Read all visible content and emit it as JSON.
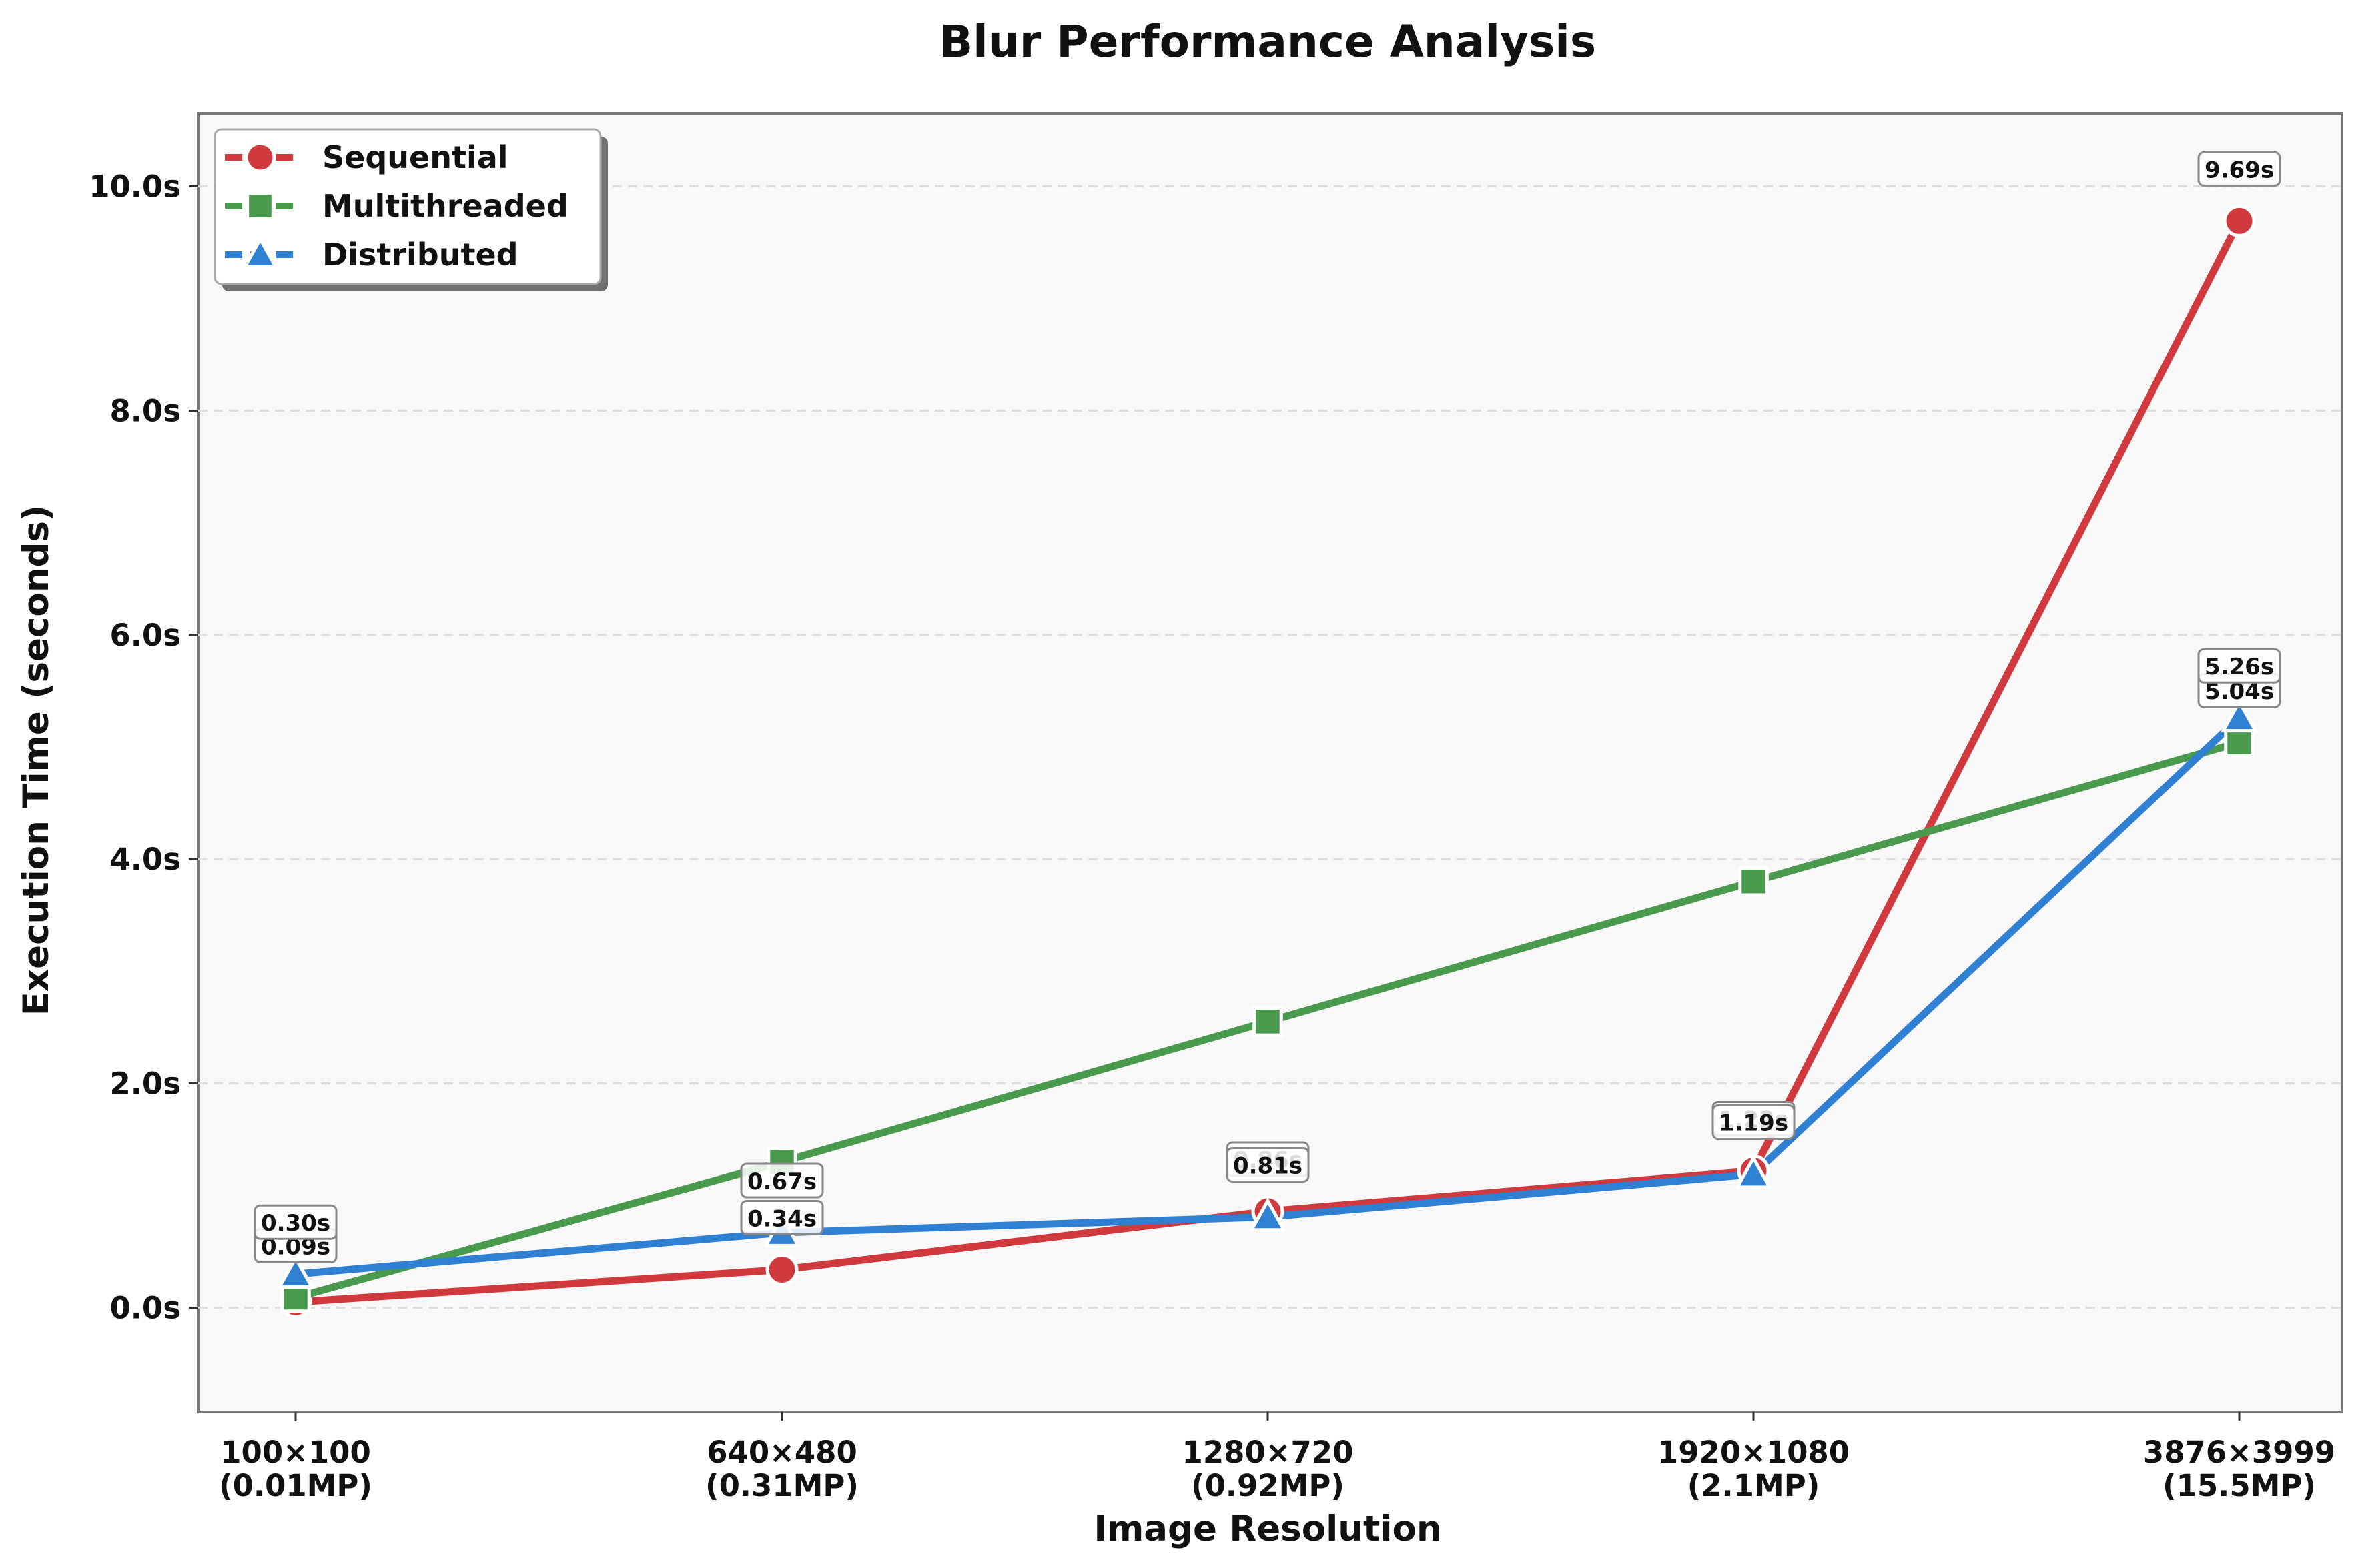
{
  "chart_data": {
    "type": "line",
    "title": "Blur Performance Analysis",
    "xlabel": "Image Resolution",
    "ylabel": "Execution Time (seconds)",
    "categories": [
      [
        "100×100",
        "(0.01MP)"
      ],
      [
        "640×480",
        "(0.31MP)"
      ],
      [
        "1280×720",
        "(0.92MP)"
      ],
      [
        "1920×1080",
        "(2.1MP)"
      ],
      [
        "3876×3999",
        "(15.5MP)"
      ]
    ],
    "ylim": [
      -0.93,
      10.65
    ],
    "yticks": [
      0,
      2,
      4,
      6,
      8,
      10
    ],
    "ytick_labels": [
      "0.0s",
      "2.0s",
      "4.0s",
      "6.0s",
      "8.0s",
      "10.0s"
    ],
    "grid": "y dashed",
    "legend": "top-left",
    "series": [
      {
        "name": "Sequential",
        "color": "#d03a3f",
        "marker": "circle",
        "values": [
          0.05,
          0.34,
          0.86,
          1.22,
          9.69
        ],
        "labels": [
          "",
          "0.34s",
          "0.86s",
          "1.22s",
          "9.69s"
        ]
      },
      {
        "name": "Multithreaded",
        "color": "#4a9a4e",
        "marker": "square",
        "values": [
          0.09,
          1.3,
          2.55,
          3.8,
          5.04
        ],
        "labels": [
          "0.09s",
          "",
          "",
          "",
          "5.04s"
        ]
      },
      {
        "name": "Distributed",
        "color": "#2f7fd2",
        "marker": "triangle",
        "values": [
          0.3,
          0.67,
          0.81,
          1.19,
          5.26
        ],
        "labels": [
          "0.30s",
          "0.67s",
          "0.81s",
          "1.19s",
          "5.26s"
        ]
      }
    ]
  }
}
